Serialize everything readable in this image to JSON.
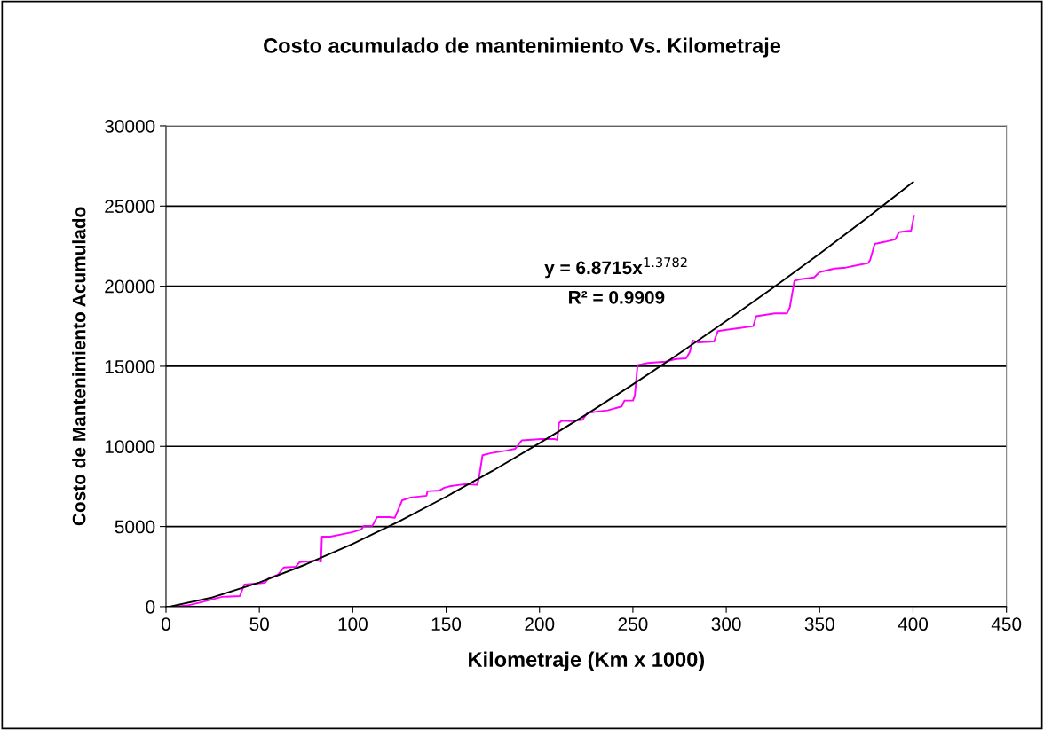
{
  "chart_data": {
    "type": "line",
    "title": "Costo acumulado de mantenimiento Vs. Kilometraje",
    "xlabel": "Kilometraje (Km x 1000)",
    "ylabel": "Costo de Mantenimiento Acumulado",
    "xlim": [
      0,
      450
    ],
    "xticks": [
      0,
      50,
      100,
      150,
      200,
      250,
      300,
      350,
      400,
      450
    ],
    "ylim": [
      0,
      30000
    ],
    "yticks": [
      0,
      5000,
      10000,
      15000,
      20000,
      25000,
      30000
    ],
    "grid": "y",
    "legend": false,
    "marker": "none",
    "line_style": "solid",
    "annotations": [
      "y = 6.8715x$^{1.3782}$",
      "R² = 0.9909"
    ],
    "series": [
      {
        "color": "#ff00ff",
        "x": [
          3,
          11,
          19,
          30,
          39.5,
          42,
          53,
          55,
          60,
          63,
          69.5,
          71.5,
          81,
          83,
          83.5,
          88,
          100,
          104.5,
          106,
          110.5,
          113,
          119.5,
          122.5,
          126.5,
          131,
          139.5,
          140,
          146.5,
          149,
          152,
          160,
          166.5,
          167.5,
          169.5,
          174,
          182,
          187,
          190.5,
          201,
          208,
          209.5,
          210.5,
          212,
          217,
          223,
          225.5,
          231,
          236.5,
          244,
          245.5,
          250,
          251,
          252.5,
          258,
          267.5,
          272.5,
          278.5,
          280.5,
          282,
          285,
          293.5,
          295.5,
          301,
          306.5,
          314.5,
          316,
          326,
          332.5,
          334,
          336.5,
          339,
          347,
          350,
          358,
          364,
          372,
          376,
          377,
          379.5,
          385,
          390.5,
          392.5,
          399,
          400.5
        ],
        "values": [
          0,
          60,
          280,
          610,
          660,
          1380,
          1490,
          1770,
          1990,
          2440,
          2490,
          2770,
          2880,
          2820,
          4370,
          4370,
          4650,
          4820,
          5040,
          5040,
          5590,
          5590,
          5540,
          6640,
          6810,
          6920,
          7200,
          7250,
          7420,
          7510,
          7640,
          7600,
          7970,
          9450,
          9580,
          9730,
          9850,
          10370,
          10460,
          10460,
          10410,
          11470,
          11610,
          11570,
          11660,
          12070,
          12180,
          12250,
          12490,
          12860,
          12860,
          13130,
          15070,
          15200,
          15290,
          15440,
          15500,
          15900,
          16610,
          16490,
          16550,
          17200,
          17290,
          17380,
          17510,
          18120,
          18300,
          18300,
          18670,
          20330,
          20420,
          20550,
          20880,
          21100,
          21160,
          21350,
          21440,
          21630,
          22640,
          22770,
          22920,
          23370,
          23470,
          24390
        ]
      },
      {
        "color": "#000000",
        "x": [
          3,
          25,
          50,
          75,
          100,
          125,
          150,
          175,
          200,
          225,
          250,
          275,
          300,
          325,
          350,
          375,
          400
        ],
        "values": [
          30,
          580,
          1510,
          2640,
          3920,
          5330,
          6860,
          8480,
          10200,
          11990,
          13870,
          15810,
          17830,
          19900,
          22030,
          24230,
          26490
        ]
      }
    ]
  }
}
